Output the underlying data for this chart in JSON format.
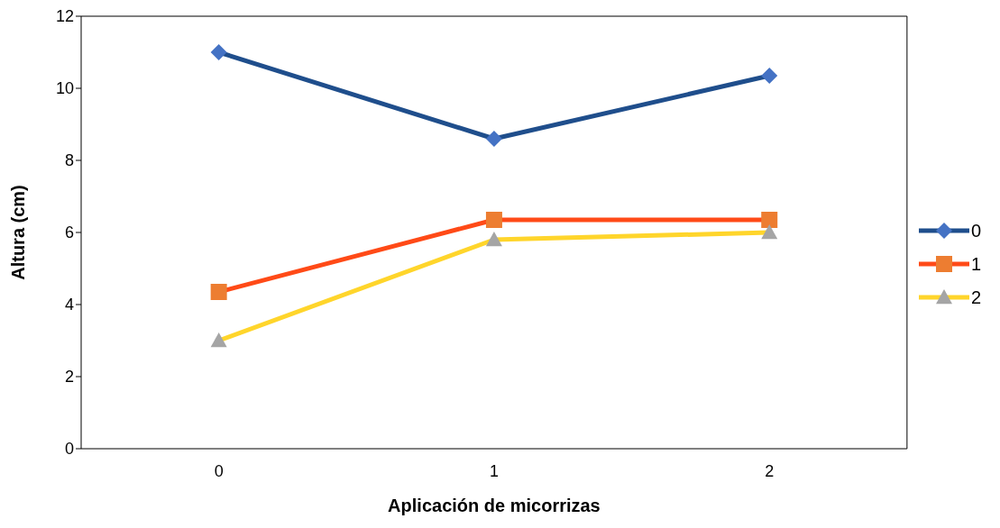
{
  "chart_data": {
    "type": "line",
    "xlabel": "Aplicación de micorrizas",
    "ylabel": "Altura (cm)",
    "categories": [
      "0",
      "1",
      "2"
    ],
    "series": [
      {
        "name": "0",
        "color": "#1f4e8c",
        "colors": [
          "#4472c4",
          "#4472c4",
          "#4472c4"
        ],
        "marker": "diamond",
        "values": [
          11,
          8.6,
          10.35
        ]
      },
      {
        "name": "1",
        "color": "#ff4a17",
        "colors": [
          "#ed7d31",
          "#ed7d31",
          "#ed7d31"
        ],
        "marker": "square",
        "values": [
          4.35,
          6.35,
          6.35
        ]
      },
      {
        "name": "2",
        "color": "#ffd52b",
        "colors": [
          "#a5a5a5",
          "#a5a5a5",
          "#a5a5a5"
        ],
        "marker": "triangle",
        "values": [
          3,
          5.8,
          6
        ]
      }
    ],
    "ylim": [
      0,
      12
    ],
    "yticks": [
      0,
      2,
      4,
      6,
      8,
      10,
      12
    ],
    "grid": false,
    "legend": "right"
  }
}
